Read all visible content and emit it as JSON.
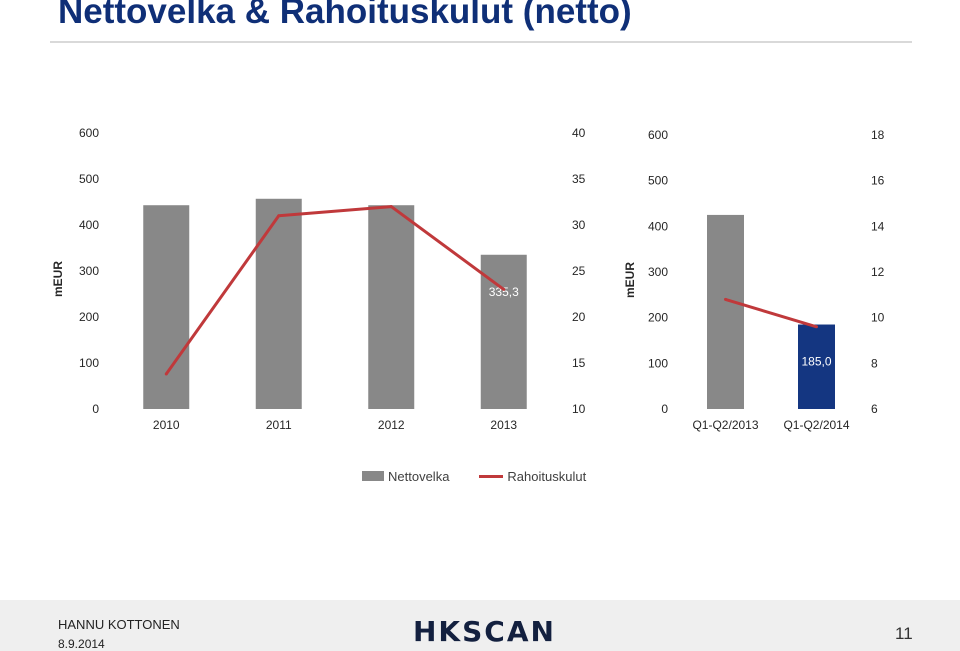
{
  "title": "Nettovelka & Rahoituskulut (netto)",
  "footer": {
    "presenter": "HANNU KOTTONEN",
    "date": "8.9.2014",
    "logo": "HKSCAN",
    "page": "11"
  },
  "legend": {
    "bar_label": "Nettovelka",
    "line_label": "Rahoituskulut"
  },
  "colors": {
    "bar": "#888888",
    "bar_highlight": "#143681",
    "line": "#c0393b",
    "title": "#0f2f77"
  },
  "chart_data": [
    {
      "type": "bar",
      "categories": [
        "2010",
        "2011",
        "2012",
        "2013"
      ],
      "series": [
        {
          "name": "Nettovelka",
          "axis": "left",
          "values": [
            443,
            457,
            443,
            335.3
          ]
        },
        {
          "name": "Rahoituskulut",
          "type": "line",
          "axis": "right",
          "values": [
            13.8,
            31,
            32,
            23
          ]
        }
      ],
      "ylabel": "mEUR",
      "ylim": [
        0,
        600
      ],
      "yticks": [
        0,
        100,
        200,
        300,
        400,
        500,
        600
      ],
      "y2lim": [
        10,
        40
      ],
      "y2ticks": [
        10,
        15,
        20,
        25,
        30,
        35,
        40
      ],
      "data_labels": [
        "",
        "",
        "",
        "335,3"
      ],
      "highlight_index": -1
    },
    {
      "type": "bar",
      "categories": [
        "Q1-Q2/2013",
        "Q1-Q2/2014"
      ],
      "series": [
        {
          "name": "Nettovelka",
          "axis": "left",
          "values": [
            425,
            185.0
          ]
        },
        {
          "name": "Rahoituskulut",
          "type": "line",
          "axis": "right",
          "values": [
            10.8,
            9.6
          ]
        }
      ],
      "ylabel": "mEUR",
      "ylim": [
        0,
        600
      ],
      "yticks": [
        0,
        100,
        200,
        300,
        400,
        500,
        600
      ],
      "y2lim": [
        6,
        18
      ],
      "y2ticks": [
        6,
        8,
        10,
        12,
        14,
        16,
        18
      ],
      "data_labels": [
        "",
        "185,0"
      ],
      "highlight_index": 1
    }
  ]
}
